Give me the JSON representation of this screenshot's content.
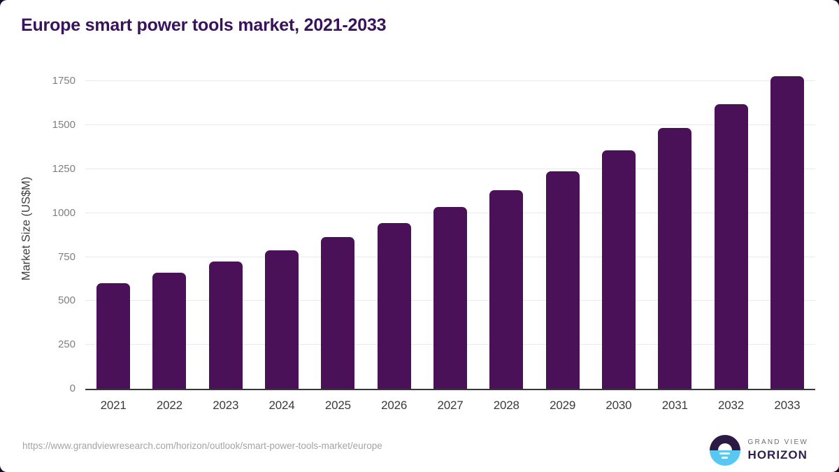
{
  "chart_data": {
    "type": "bar",
    "title": "Europe smart power tools market, 2021-2033",
    "xlabel": "",
    "ylabel": "Market Size (US$M)",
    "categories": [
      "2021",
      "2022",
      "2023",
      "2024",
      "2025",
      "2026",
      "2027",
      "2028",
      "2029",
      "2030",
      "2031",
      "2032",
      "2033"
    ],
    "values": [
      601,
      662,
      723,
      789,
      862,
      943,
      1034,
      1129,
      1240,
      1356,
      1486,
      1622,
      1780
    ],
    "yticks": [
      0,
      250,
      500,
      750,
      1000,
      1250,
      1500,
      1750
    ],
    "ylim": [
      0,
      1840
    ],
    "grid": "horizontal",
    "legend": "none",
    "bar_color": "#4a1158"
  },
  "colors": {
    "title": "#38125a",
    "axis_line": "#37373a",
    "gridline": "#e9e9ec",
    "ytick_text": "#7f7f86",
    "xtick_text": "#3a3a3a",
    "url_text": "#a4a4a8",
    "logo_purple": "#2c1a45",
    "logo_blue": "#58c7f1"
  },
  "footer": {
    "source_url": "https://www.grandviewresearch.com/horizon/outlook/smart-power-tools-market/europe",
    "brand_top": "GRAND VIEW",
    "brand_bottom": "HORIZON"
  }
}
